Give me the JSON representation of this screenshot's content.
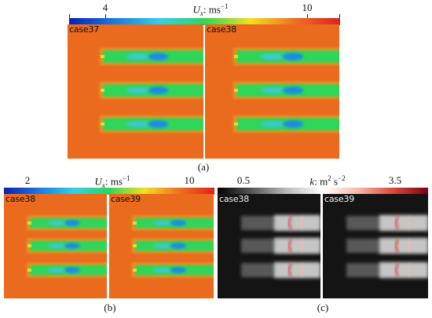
{
  "figure_a": {
    "colorbar": {
      "title_var": "U",
      "title_sub": "x",
      "title_unit": ": ms",
      "title_exp": "−1",
      "tick_labels": [
        "4",
        "10"
      ],
      "colors": [
        "#0a1fb0",
        "#1e78e0",
        "#33d0e8",
        "#2ed65a",
        "#f0e020",
        "#f07020",
        "#e0201c"
      ]
    },
    "panels": [
      {
        "label": "case37"
      },
      {
        "label": "case38"
      }
    ],
    "caption": "(a)"
  },
  "figure_b": {
    "colorbar": {
      "title_var": "U",
      "title_sub": "x",
      "title_unit": ": ms",
      "title_exp": "−1",
      "tick_labels": [
        "2",
        "10"
      ],
      "colors": [
        "#0a1fb0",
        "#1e78e0",
        "#33d0e8",
        "#2ed65a",
        "#f0e020",
        "#f07020",
        "#e0201c"
      ]
    },
    "panels": [
      {
        "label": "case38"
      },
      {
        "label": "case39"
      }
    ],
    "caption": "(b)"
  },
  "figure_c": {
    "colorbar": {
      "title_var": "k",
      "title_unit": ": m",
      "title_exp1": "2",
      "title_mid": " s",
      "title_exp2": "−2",
      "tick_labels": [
        "0.5",
        "3.5"
      ],
      "colors": [
        "#000000",
        "#5a5a5a",
        "#bdbdbd",
        "#ffffff",
        "#f6b8a8",
        "#d84a3a",
        "#7a0010"
      ]
    },
    "panels": [
      {
        "label": "case38"
      },
      {
        "label": "case39"
      }
    ],
    "caption": "(c)"
  },
  "colors": {
    "background_orange": "#ea6a1e",
    "jet_green": "#2ed65a",
    "jet_core_blue": "#1a8ae6",
    "dark_bg": "#141414"
  }
}
